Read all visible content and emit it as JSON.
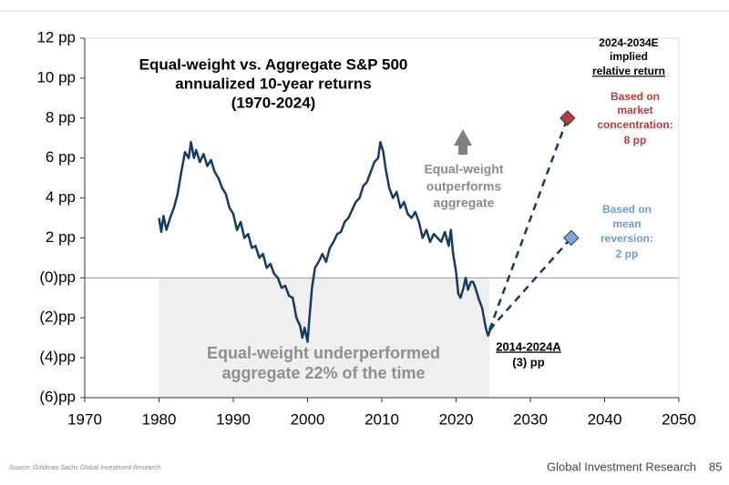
{
  "chart_data": {
    "type": "line",
    "title": [
      "Equal-weight vs. Aggregate S&P 500",
      "annualized 10-year returns",
      "(1970-2024)"
    ],
    "x": [
      1980,
      1980.3,
      1980.6,
      1981,
      1981.5,
      1982,
      1982.5,
      1983,
      1983.5,
      1984,
      1984.3,
      1984.7,
      1985,
      1985.5,
      1986,
      1986.5,
      1987,
      1987.5,
      1988,
      1988.5,
      1989,
      1989.5,
      1990,
      1990.5,
      1991,
      1991.5,
      1992,
      1992.5,
      1993,
      1993.5,
      1994,
      1994.5,
      1995,
      1995.5,
      1996,
      1996.5,
      1997,
      1997.5,
      1998,
      1998.5,
      1999,
      1999.3,
      1999.6,
      2000,
      2000.3,
      2000.6,
      2001,
      2001.5,
      2002,
      2002.5,
      2003,
      2003.5,
      2004,
      2004.5,
      2005,
      2005.5,
      2006,
      2006.5,
      2007,
      2007.5,
      2008,
      2008.5,
      2009,
      2009.5,
      2009.8,
      2010.2,
      2010.5,
      2011,
      2011.5,
      2012,
      2012.5,
      2013,
      2013.5,
      2014,
      2014.5,
      2015,
      2015.5,
      2016,
      2016.5,
      2017,
      2017.5,
      2018,
      2018.5,
      2019,
      2019.3,
      2019.6,
      2020,
      2020.3,
      2020.6,
      2021,
      2021.3,
      2021.6,
      2022,
      2022.3,
      2022.6,
      2023,
      2023.5,
      2024,
      2024.3,
      2024.6,
      2025
    ],
    "series": [
      {
        "color": "#173a63",
        "values": [
          3.0,
          2.3,
          3.1,
          2.4,
          3.0,
          3.5,
          4.2,
          5.3,
          6.3,
          6.0,
          6.8,
          6.0,
          6.4,
          5.8,
          6.2,
          5.6,
          5.9,
          5.3,
          5.0,
          4.5,
          4.2,
          3.5,
          3.2,
          2.4,
          2.8,
          2.0,
          2.2,
          1.5,
          1.6,
          1.0,
          1.2,
          0.5,
          0.7,
          0.2,
          0.0,
          -0.5,
          -0.4,
          -0.9,
          -1.0,
          -2.0,
          -2.4,
          -3.0,
          -2.5,
          -3.2,
          -1.8,
          -0.5,
          0.5,
          0.8,
          1.2,
          0.8,
          1.5,
          1.8,
          2.2,
          2.3,
          2.8,
          3.0,
          3.4,
          3.8,
          4.0,
          4.6,
          4.8,
          5.3,
          5.8,
          6.0,
          6.8,
          6.3,
          5.5,
          4.5,
          4.0,
          4.3,
          3.5,
          3.8,
          3.2,
          3.0,
          3.3,
          2.8,
          2.0,
          2.4,
          1.8,
          2.2,
          2.0,
          1.8,
          2.3,
          1.6,
          2.4,
          1.2,
          0.3,
          -0.8,
          -1.0,
          -0.5,
          0.0,
          -0.6,
          -0.2,
          -0.2,
          -0.5,
          -1.0,
          -1.5,
          -2.5,
          -2.9,
          -2.6,
          -2.4
        ]
      }
    ],
    "projections": [
      {
        "x": [
          2024.5,
          2035
        ],
        "values": [
          -2.6,
          8
        ],
        "color": "#b83c3c"
      },
      {
        "x": [
          2024.5,
          2035.5
        ],
        "values": [
          -2.6,
          2
        ],
        "color": "#7ea6d4"
      }
    ],
    "xlim": [
      1970,
      2050
    ],
    "xticks": [
      1970,
      1980,
      1990,
      2000,
      2010,
      2020,
      2030,
      2040,
      2050
    ],
    "ylim": [
      -6,
      12
    ],
    "yticks": [
      {
        "value": 12,
        "label": "12 pp"
      },
      {
        "value": 10,
        "label": "10 pp"
      },
      {
        "value": 8,
        "label": "8 pp"
      },
      {
        "value": 6,
        "label": "6 pp"
      },
      {
        "value": 4,
        "label": "4 pp"
      },
      {
        "value": 2,
        "label": "2 pp"
      },
      {
        "value": 0,
        "label": "(0)pp"
      },
      {
        "value": -2,
        "label": "(2)pp"
      },
      {
        "value": -4,
        "label": "(4)pp"
      },
      {
        "value": -6,
        "label": "(6)pp"
      }
    ],
    "outperform_note": [
      "Equal-weight",
      "outperforms",
      "aggregate"
    ],
    "underperform_note": [
      "Equal-weight underperformed",
      "aggregate 22% of the time"
    ],
    "current_note": [
      "2014-2024A",
      "(3) pp"
    ],
    "forecast_header": [
      "2024-2034E",
      "implied",
      "relative return"
    ],
    "concentration_note": [
      "Based on",
      "market",
      "concentration:",
      "8 pp"
    ],
    "reversion_note": [
      "Based on",
      "mean",
      "reversion:",
      "2 pp"
    ]
  },
  "footer": {
    "source": "Source: Goldman Sachs Global Investment Research.",
    "brand": "Global Investment Research",
    "page": "85"
  }
}
